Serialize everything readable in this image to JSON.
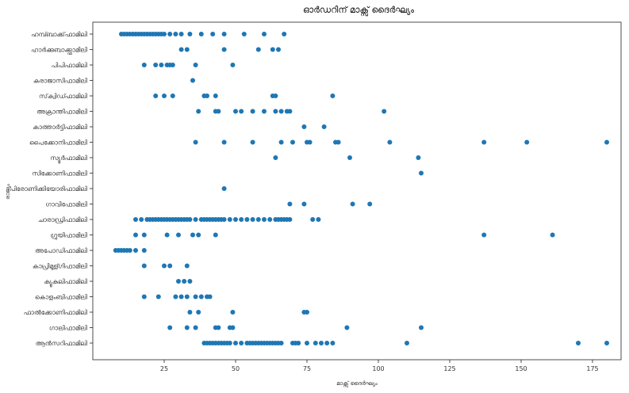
{
  "chart_data": {
    "type": "scatter",
    "title": "ഓർഡറിന് മാക്സ് ദൈർഘ്യം",
    "xlabel": "മാക്സ് ദൈർഘ്യം",
    "ylabel": "രാജ്യം",
    "xlim": [
      0,
      185
    ],
    "xticks": [
      25,
      50,
      75,
      100,
      125,
      150,
      175
    ],
    "grid": false,
    "legend": "none",
    "marker_color": "#1f77b4",
    "categories": [
      "ഹമ്പ്ബാക്ക്‌ഫാമിലി",
      "ഹാർക്കുബാക്ക്ഫാമിലി",
      "പിപിഫാമിലി",
      "കരാജാസിഫാമിലി",
      "സ്‌ക്വിഡ്ഫാമിലി",
      "അക്രാന്തിഫാമിലി",
      "കാത്താർട്ടിഫാമിലി",
      "പൈക്കോനിഫാമിലി",
      "സ്യൂർഫാമിലി",
      "സിക്കോണിഫാമിലി",
      "പിരോണിക്കിയോരിഫാമിലി",
      "ഗാവിഫോമിലി",
      "ചാരാഡ്രിഫാമിലി",
      "ഗ്രുയിഫാമിലി",
      "അപോഡിഫാമിലി",
      "കാപ്രിമുള്ഗിഫാമിലി",
      "ക്യൂകുലിഫാമിലി",
      "കൊളംബിഫാമിലി",
      "ഫാൽക്കോണിഫാമിലി",
      "ഗാലിഫാമിലി",
      "ആൻസറിഫാമിലി"
    ],
    "x": [
      [
        10,
        11,
        12,
        13,
        14,
        15,
        16,
        17,
        18,
        19,
        20,
        21,
        22,
        23,
        24,
        25,
        27,
        29,
        31,
        34,
        38,
        42,
        46,
        53,
        60,
        67
      ],
      [
        31,
        33,
        46,
        58,
        63,
        65
      ],
      [
        18,
        22,
        24,
        26,
        27,
        28,
        36,
        49
      ],
      [
        35
      ],
      [
        22,
        25,
        28,
        39,
        40,
        43,
        63,
        64,
        84
      ],
      [
        37,
        43,
        44,
        50,
        52,
        56,
        60,
        64,
        66,
        68,
        69,
        102
      ],
      [
        74,
        81
      ],
      [
        36,
        46,
        56,
        66,
        70,
        75,
        76,
        85,
        86,
        104,
        137,
        152,
        180
      ],
      [
        64,
        90,
        114
      ],
      [
        115
      ],
      [
        46
      ],
      [
        69,
        74,
        91,
        97
      ],
      [
        15,
        17,
        19,
        20,
        21,
        22,
        23,
        24,
        25,
        26,
        27,
        28,
        29,
        30,
        31,
        32,
        33,
        34,
        36,
        38,
        39,
        40,
        41,
        42,
        43,
        44,
        45,
        46,
        48,
        50,
        52,
        54,
        56,
        58,
        60,
        62,
        64,
        65,
        66,
        67,
        68,
        69,
        77,
        79
      ],
      [
        15,
        18,
        26,
        30,
        35,
        37,
        43,
        137,
        161
      ],
      [
        8,
        9,
        10,
        11,
        12,
        13,
        15,
        18
      ],
      [
        18,
        25,
        27,
        33
      ],
      [
        30,
        32,
        34
      ],
      [
        18,
        23,
        29,
        31,
        33,
        36,
        38,
        40,
        41
      ],
      [
        34,
        37,
        49,
        74,
        75
      ],
      [
        27,
        33,
        36,
        43,
        44,
        48,
        49,
        89,
        115
      ],
      [
        39,
        40,
        41,
        42,
        43,
        44,
        45,
        46,
        47,
        48,
        50,
        52,
        54,
        55,
        56,
        57,
        58,
        59,
        60,
        61,
        62,
        63,
        64,
        65,
        66,
        70,
        71,
        72,
        75,
        78,
        80,
        82,
        84,
        110,
        170,
        180
      ]
    ]
  }
}
